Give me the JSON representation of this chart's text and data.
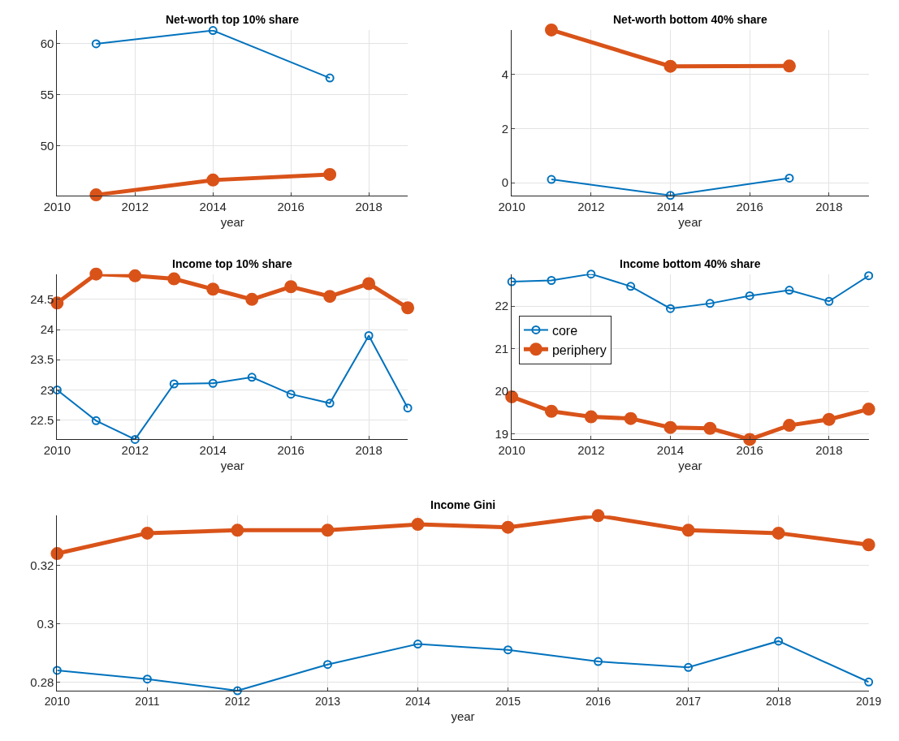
{
  "chart_data": [
    {
      "type": "line",
      "title": "Net-worth top 10% share",
      "xlabel": "year",
      "x": [
        2011,
        2014,
        2017
      ],
      "xlim": [
        2010,
        2019
      ],
      "xticks": [
        2010,
        2012,
        2014,
        2016,
        2018
      ],
      "ylim": [
        45.15,
        61.35
      ],
      "yticks": [
        50,
        55,
        60
      ],
      "grid": true,
      "legend": false,
      "marker": "circle",
      "line_style": "solid",
      "series": [
        {
          "color": "#0072bd",
          "values": [
            60.0,
            61.3,
            56.65
          ]
        },
        {
          "color": "#d95319",
          "values": [
            45.2,
            46.65,
            47.2
          ]
        }
      ]
    },
    {
      "type": "line",
      "title": "Net-worth bottom 40% share",
      "xlabel": "year",
      "x": [
        2011,
        2014,
        2017
      ],
      "xlim": [
        2010,
        2019
      ],
      "xticks": [
        2010,
        2012,
        2014,
        2016,
        2018
      ],
      "ylim": [
        -0.47,
        5.64
      ],
      "yticks": [
        0,
        2,
        4
      ],
      "grid": true,
      "legend": false,
      "marker": "circle",
      "line_style": "solid",
      "series": [
        {
          "color": "#0072bd",
          "values": [
            0.12,
            -0.47,
            0.17
          ]
        },
        {
          "color": "#d95319",
          "values": [
            5.64,
            4.3,
            4.31
          ]
        }
      ]
    },
    {
      "type": "line",
      "title": "Income top 10% share",
      "xlabel": "year",
      "x": [
        2010,
        2011,
        2012,
        2013,
        2014,
        2015,
        2016,
        2017,
        2018,
        2019
      ],
      "xlim": [
        2010,
        2019
      ],
      "xticks": [
        2010,
        2012,
        2014,
        2016,
        2018
      ],
      "ylim": [
        22.18,
        24.92
      ],
      "yticks": [
        22.5,
        23,
        23.5,
        24,
        24.5
      ],
      "grid": true,
      "legend": false,
      "marker": "circle",
      "line_style": "solid",
      "series": [
        {
          "color": "#0072bd",
          "values": [
            23.0,
            22.49,
            22.18,
            23.1,
            23.11,
            23.21,
            22.93,
            22.78,
            23.9,
            22.7
          ]
        },
        {
          "color": "#d95319",
          "values": [
            24.44,
            24.92,
            24.89,
            24.84,
            24.67,
            24.5,
            24.71,
            24.55,
            24.76,
            24.36
          ]
        }
      ]
    },
    {
      "type": "line",
      "title": "Income bottom 40% share",
      "xlabel": "year",
      "x": [
        2010,
        2011,
        2012,
        2013,
        2014,
        2015,
        2016,
        2017,
        2018,
        2019
      ],
      "xlim": [
        2010,
        2019
      ],
      "xticks": [
        2010,
        2012,
        2014,
        2016,
        2018
      ],
      "ylim": [
        18.87,
        22.75
      ],
      "yticks": [
        19,
        20,
        21,
        22
      ],
      "grid": true,
      "legend": "left",
      "marker": "circle",
      "line_style": "solid",
      "series": [
        {
          "name": "core",
          "color": "#0072bd",
          "values": [
            22.57,
            22.6,
            22.75,
            22.46,
            21.94,
            22.06,
            22.24,
            22.37,
            22.11,
            22.71
          ]
        },
        {
          "name": "periphery",
          "color": "#d95319",
          "values": [
            19.87,
            19.53,
            19.4,
            19.36,
            19.15,
            19.13,
            18.87,
            19.2,
            19.34,
            19.58
          ]
        }
      ]
    },
    {
      "type": "line",
      "title": "Income Gini",
      "xlabel": "year",
      "x": [
        2010,
        2011,
        2012,
        2013,
        2014,
        2015,
        2016,
        2017,
        2018,
        2019
      ],
      "xlim": [
        2010,
        2019
      ],
      "xticks": [
        2010,
        2011,
        2012,
        2013,
        2014,
        2015,
        2016,
        2017,
        2018,
        2019
      ],
      "ylim": [
        0.277,
        0.337
      ],
      "yticks": [
        0.28,
        0.3,
        0.32
      ],
      "grid": true,
      "legend": false,
      "marker": "circle",
      "line_style": "solid",
      "series": [
        {
          "color": "#0072bd",
          "values": [
            0.284,
            0.281,
            0.277,
            0.286,
            0.293,
            0.291,
            0.287,
            0.285,
            0.294,
            0.28
          ]
        },
        {
          "color": "#d95319",
          "values": [
            0.324,
            0.331,
            0.332,
            0.332,
            0.334,
            0.333,
            0.337,
            0.332,
            0.331,
            0.327
          ]
        }
      ]
    }
  ]
}
